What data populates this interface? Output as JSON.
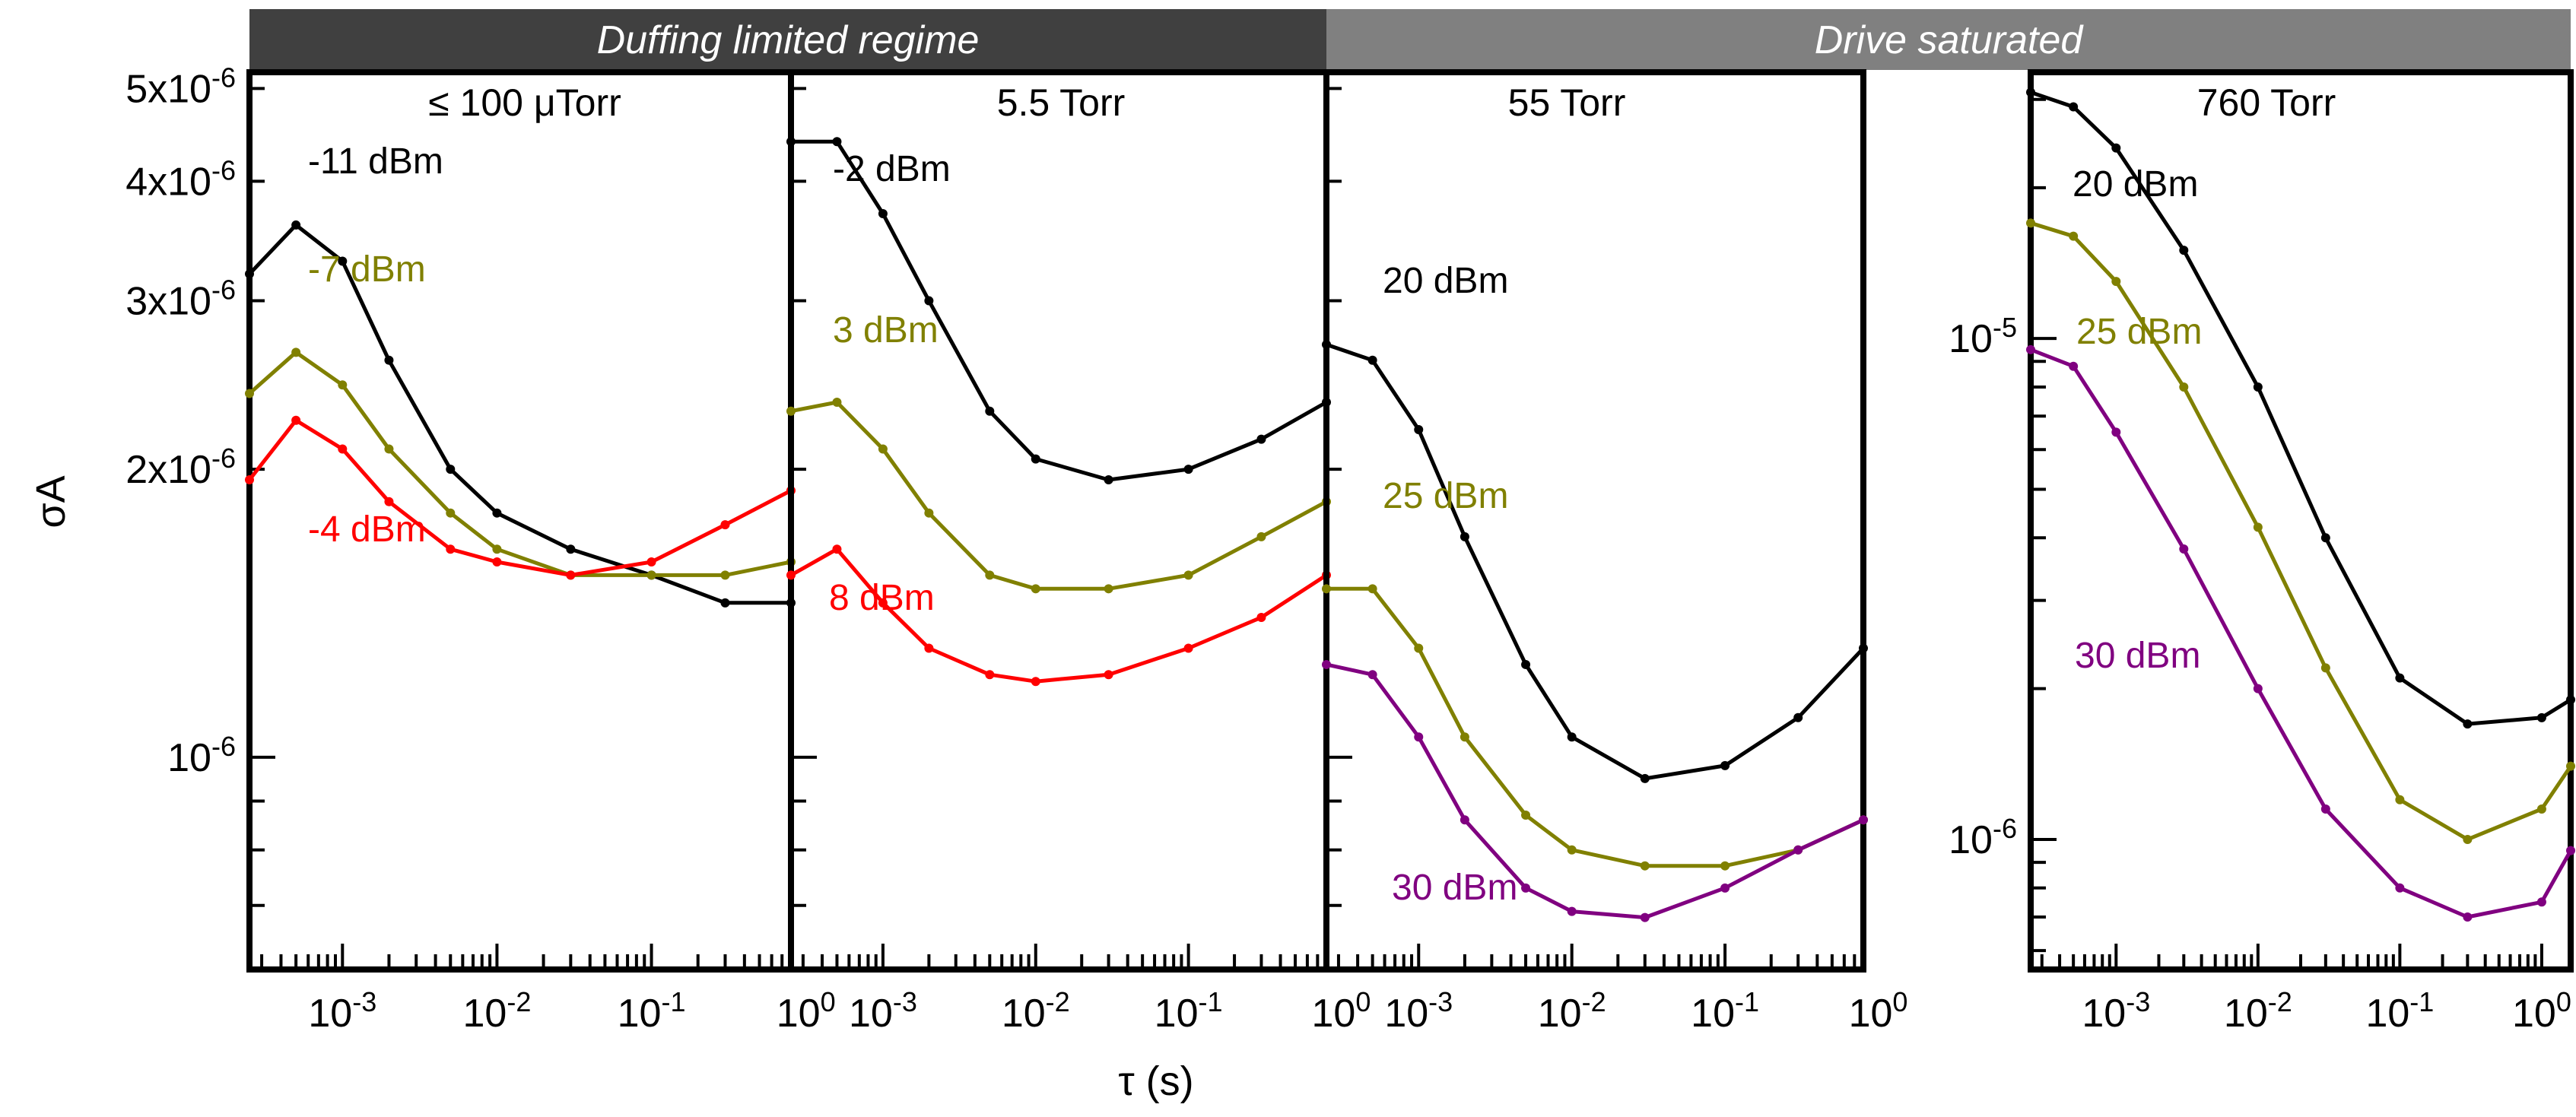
{
  "chart_data": {
    "type": "line",
    "xlabel": "τ (s)",
    "ylabel": "σA",
    "x_scale": "log",
    "y_scale": "log",
    "regimes": [
      {
        "label": "Duffing limited regime",
        "color": "#404040",
        "panels": [
          0,
          1
        ]
      },
      {
        "label": "Drive saturated",
        "color": "#808080",
        "panels": [
          2,
          3
        ]
      }
    ],
    "panels": [
      {
        "title": "≤ 100 μTorr",
        "xlim": [
          0.00025,
          0.8
        ],
        "ylim": [
          6e-07,
          5.2e-06
        ],
        "x_ticks": [
          "10-3",
          "10-2",
          "10-1",
          "100"
        ],
        "y_ticks": [
          "5x10-6",
          "4x10-6",
          "3x10-6",
          "2x10-6",
          "10-6"
        ],
        "series": [
          {
            "name": "-11 dBm",
            "color": "#000000",
            "x": [
              0.00025,
              0.0005,
              0.001,
              0.002,
              0.005,
              0.01,
              0.03,
              0.1,
              0.3,
              0.8
            ],
            "y": [
              3.2e-06,
              3.6e-06,
              3.3e-06,
              2.6e-06,
              2e-06,
              1.8e-06,
              1.65e-06,
              1.55e-06,
              1.45e-06,
              1.45e-06
            ]
          },
          {
            "name": "-7 dBm",
            "color": "#808000",
            "x": [
              0.00025,
              0.0005,
              0.001,
              0.002,
              0.005,
              0.01,
              0.03,
              0.1,
              0.3,
              0.8
            ],
            "y": [
              2.4e-06,
              2.65e-06,
              2.45e-06,
              2.1e-06,
              1.8e-06,
              1.65e-06,
              1.55e-06,
              1.55e-06,
              1.55e-06,
              1.6e-06
            ]
          },
          {
            "name": "-4 dBm",
            "color": "#ff0000",
            "x": [
              0.00025,
              0.0005,
              0.001,
              0.002,
              0.005,
              0.01,
              0.03,
              0.1,
              0.3,
              0.8
            ],
            "y": [
              1.95e-06,
              2.25e-06,
              2.1e-06,
              1.85e-06,
              1.65e-06,
              1.6e-06,
              1.55e-06,
              1.6e-06,
              1.75e-06,
              1.9e-06
            ]
          }
        ]
      },
      {
        "title": "5.5 Torr",
        "xlim": [
          0.00025,
          0.8
        ],
        "ylim": [
          6e-07,
          5.2e-06
        ],
        "x_ticks": [
          "10-3",
          "10-2",
          "10-1",
          "100"
        ],
        "series": [
          {
            "name": "-2 dBm",
            "color": "#000000",
            "x": [
              0.00025,
              0.0005,
              0.001,
              0.002,
              0.005,
              0.01,
              0.03,
              0.1,
              0.3,
              0.8
            ],
            "y": [
              4.4e-06,
              4.4e-06,
              3.7e-06,
              3e-06,
              2.3e-06,
              2.05e-06,
              1.95e-06,
              2e-06,
              2.15e-06,
              2.35e-06
            ]
          },
          {
            "name": "3 dBm",
            "color": "#808000",
            "x": [
              0.00025,
              0.0005,
              0.001,
              0.002,
              0.005,
              0.01,
              0.03,
              0.1,
              0.3,
              0.8
            ],
            "y": [
              2.3e-06,
              2.35e-06,
              2.1e-06,
              1.8e-06,
              1.55e-06,
              1.5e-06,
              1.5e-06,
              1.55e-06,
              1.7e-06,
              1.85e-06
            ]
          },
          {
            "name": "8 dBm",
            "color": "#ff0000",
            "x": [
              0.00025,
              0.0005,
              0.001,
              0.002,
              0.005,
              0.01,
              0.03,
              0.1,
              0.3,
              0.8
            ],
            "y": [
              1.55e-06,
              1.65e-06,
              1.45e-06,
              1.3e-06,
              1.22e-06,
              1.2e-06,
              1.22e-06,
              1.3e-06,
              1.4e-06,
              1.55e-06
            ]
          }
        ]
      },
      {
        "title": "55 Torr",
        "xlim": [
          0.00025,
          0.8
        ],
        "ylim": [
          6e-07,
          5.2e-06
        ],
        "x_ticks": [
          "10-3",
          "10-2",
          "10-1",
          "100"
        ],
        "series": [
          {
            "name": "20 dBm",
            "color": "#000000",
            "x": [
              0.00025,
              0.0005,
              0.001,
              0.002,
              0.005,
              0.01,
              0.03,
              0.1,
              0.3,
              0.8
            ],
            "y": [
              2.7e-06,
              2.6e-06,
              2.2e-06,
              1.7e-06,
              1.25e-06,
              1.05e-06,
              9.5e-07,
              9.8e-07,
              1.1e-06,
              1.3e-06
            ]
          },
          {
            "name": "25 dBm",
            "color": "#808000",
            "x": [
              0.00025,
              0.0005,
              0.001,
              0.002,
              0.005,
              0.01,
              0.03,
              0.1,
              0.3,
              0.8
            ],
            "y": [
              1.5e-06,
              1.5e-06,
              1.3e-06,
              1.05e-06,
              8.7e-07,
              8e-07,
              7.7e-07,
              7.7e-07,
              8e-07,
              8.6e-07
            ]
          },
          {
            "name": "30 dBm",
            "color": "#800080",
            "x": [
              0.00025,
              0.0005,
              0.001,
              0.002,
              0.005,
              0.01,
              0.03,
              0.1,
              0.3,
              0.8
            ],
            "y": [
              1.25e-06,
              1.22e-06,
              1.05e-06,
              8.6e-07,
              7.3e-07,
              6.9e-07,
              6.8e-07,
              7.3e-07,
              8e-07,
              8.6e-07
            ]
          }
        ]
      },
      {
        "title": "760 Torr",
        "xlim": [
          0.00025,
          1.6
        ],
        "ylim": [
          5.5e-07,
          3.4e-05
        ],
        "x_ticks": [
          "10-3",
          "10-2",
          "10-1",
          "100"
        ],
        "y_ticks": [
          "10-5",
          "10-6"
        ],
        "series": [
          {
            "name": "20 dBm",
            "color": "#000000",
            "x": [
              0.00025,
              0.0005,
              0.001,
              0.003,
              0.01,
              0.03,
              0.1,
              0.3,
              1.0,
              1.6
            ],
            "y": [
              3.1e-05,
              2.9e-05,
              2.4e-05,
              1.5e-05,
              8e-06,
              4e-06,
              2.1e-06,
              1.7e-06,
              1.75e-06,
              1.9e-06
            ]
          },
          {
            "name": "25 dBm",
            "color": "#808000",
            "x": [
              0.00025,
              0.0005,
              0.001,
              0.003,
              0.01,
              0.03,
              0.1,
              0.3,
              1.0,
              1.6
            ],
            "y": [
              1.7e-05,
              1.6e-05,
              1.3e-05,
              8e-06,
              4.2e-06,
              2.2e-06,
              1.2e-06,
              1e-06,
              1.15e-06,
              1.4e-06
            ]
          },
          {
            "name": "30 dBm",
            "color": "#800080",
            "x": [
              0.00025,
              0.0005,
              0.001,
              0.003,
              0.01,
              0.03,
              0.1,
              0.3,
              1.0,
              1.6
            ],
            "y": [
              9.5e-06,
              8.8e-06,
              6.5e-06,
              3.8e-06,
              2e-06,
              1.15e-06,
              8e-07,
              7e-07,
              7.5e-07,
              9.5e-07
            ]
          }
        ]
      }
    ]
  }
}
